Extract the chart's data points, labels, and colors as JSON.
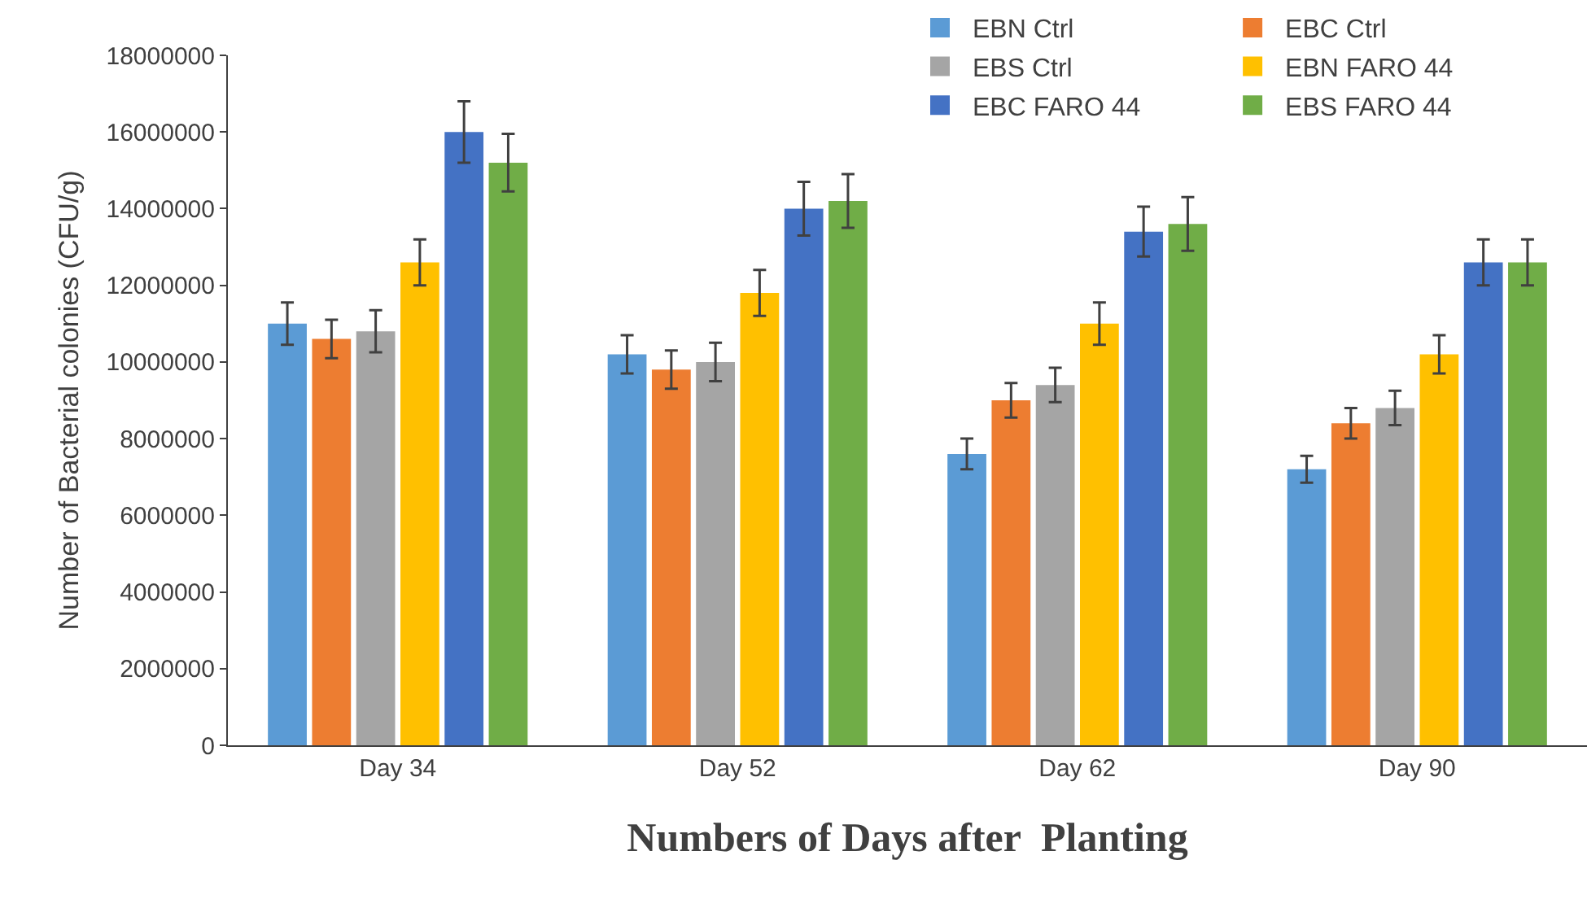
{
  "chart_data": {
    "type": "bar",
    "xlabel": "Numbers of Days after  Planting",
    "ylabel": "Number of Bacterial colonies (CFU/g)",
    "categories": [
      "Day 34",
      "Day 52",
      "Day 62",
      "Day 90"
    ],
    "series": [
      {
        "name": "EBN Ctrl",
        "color": "#5b9bd5",
        "values": [
          11000000,
          10200000,
          7600000,
          7200000
        ],
        "errors": [
          550000,
          500000,
          400000,
          350000
        ]
      },
      {
        "name": "EBC Ctrl",
        "color": "#ed7d31",
        "values": [
          10600000,
          9800000,
          9000000,
          8400000
        ],
        "errors": [
          500000,
          500000,
          450000,
          400000
        ]
      },
      {
        "name": "EBS Ctrl",
        "color": "#a5a5a5",
        "values": [
          10800000,
          10000000,
          9400000,
          8800000
        ],
        "errors": [
          550000,
          500000,
          450000,
          450000
        ]
      },
      {
        "name": "EBN FARO 44",
        "color": "#ffc000",
        "values": [
          12600000,
          11800000,
          11000000,
          10200000
        ],
        "errors": [
          600000,
          600000,
          550000,
          500000
        ]
      },
      {
        "name": "EBC FARO 44",
        "color": "#4472c4",
        "values": [
          16000000,
          14000000,
          13400000,
          12600000
        ],
        "errors": [
          800000,
          700000,
          650000,
          600000
        ]
      },
      {
        "name": "EBS FARO 44",
        "color": "#70ad47",
        "values": [
          15200000,
          14200000,
          13600000,
          12600000
        ],
        "errors": [
          750000,
          700000,
          700000,
          600000
        ]
      }
    ],
    "ylim": [
      0,
      18000000
    ],
    "yticks": [
      0,
      2000000,
      4000000,
      6000000,
      8000000,
      10000000,
      12000000,
      14000000,
      16000000,
      18000000
    ],
    "grid": false,
    "legend": "top right"
  }
}
